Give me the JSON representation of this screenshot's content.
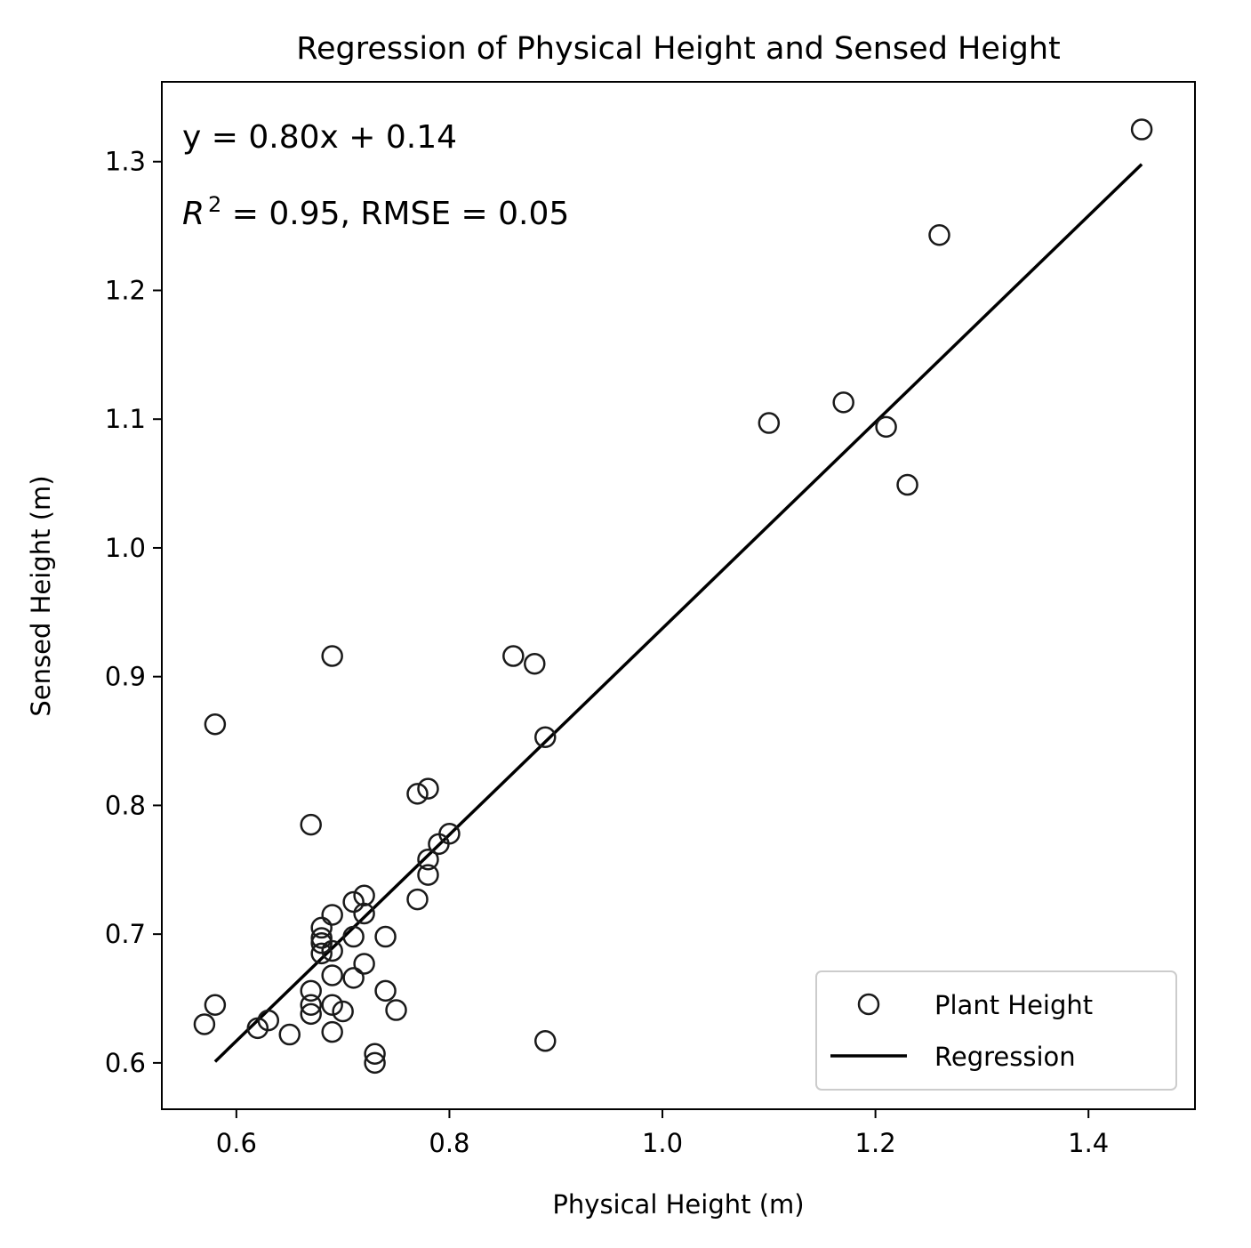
{
  "chart_data": {
    "type": "scatter",
    "title": "Regression of Physical Height and Sensed Height",
    "xlabel": "Physical Height (m)",
    "ylabel": "Sensed Height (m)",
    "xlim": [
      0.53,
      1.5
    ],
    "ylim": [
      0.564,
      1.362
    ],
    "xticks": [
      0.6,
      0.8,
      1.0,
      1.2,
      1.4
    ],
    "xtick_labels": [
      "0.6",
      "0.8",
      "1.0",
      "1.2",
      "1.4"
    ],
    "yticks": [
      0.6,
      0.7,
      0.8,
      0.9,
      1.0,
      1.1,
      1.2,
      1.3
    ],
    "ytick_labels": [
      "0.6",
      "0.7",
      "0.8",
      "0.9",
      "1.0",
      "1.1",
      "1.2",
      "1.3"
    ],
    "grid": false,
    "legend_position": "bottom-right",
    "annotation": {
      "equation": "y = 0.80x + 0.14",
      "r2_symbol": "R",
      "r2_exponent": "2",
      "r2_rest": " = 0.95, RMSE = 0.05"
    },
    "series": [
      {
        "name": "Plant Height",
        "marker": "open-circle",
        "color": "#1a1a1a",
        "x": [
          0.57,
          0.58,
          0.58,
          0.62,
          0.63,
          0.65,
          0.67,
          0.67,
          0.67,
          0.67,
          0.68,
          0.68,
          0.68,
          0.68,
          0.69,
          0.69,
          0.69,
          0.69,
          0.69,
          0.69,
          0.7,
          0.71,
          0.71,
          0.71,
          0.72,
          0.72,
          0.72,
          0.73,
          0.73,
          0.74,
          0.74,
          0.75,
          0.77,
          0.77,
          0.78,
          0.78,
          0.78,
          0.79,
          0.8,
          0.86,
          0.88,
          0.89,
          0.89,
          1.1,
          1.17,
          1.21,
          1.23,
          1.26,
          1.45
        ],
        "y": [
          0.63,
          0.645,
          0.863,
          0.627,
          0.633,
          0.622,
          0.638,
          0.645,
          0.656,
          0.785,
          0.685,
          0.693,
          0.697,
          0.705,
          0.916,
          0.715,
          0.687,
          0.668,
          0.645,
          0.624,
          0.64,
          0.725,
          0.698,
          0.666,
          0.73,
          0.716,
          0.677,
          0.607,
          0.6,
          0.698,
          0.656,
          0.641,
          0.809,
          0.727,
          0.813,
          0.758,
          0.746,
          0.77,
          0.778,
          0.916,
          0.91,
          0.853,
          0.617,
          1.097,
          1.113,
          1.094,
          1.049,
          1.243,
          1.325
        ]
      },
      {
        "name": "Regression",
        "type": "line",
        "color": "#000000",
        "x": [
          0.58,
          1.45
        ],
        "y": [
          0.601,
          1.298
        ]
      }
    ]
  }
}
